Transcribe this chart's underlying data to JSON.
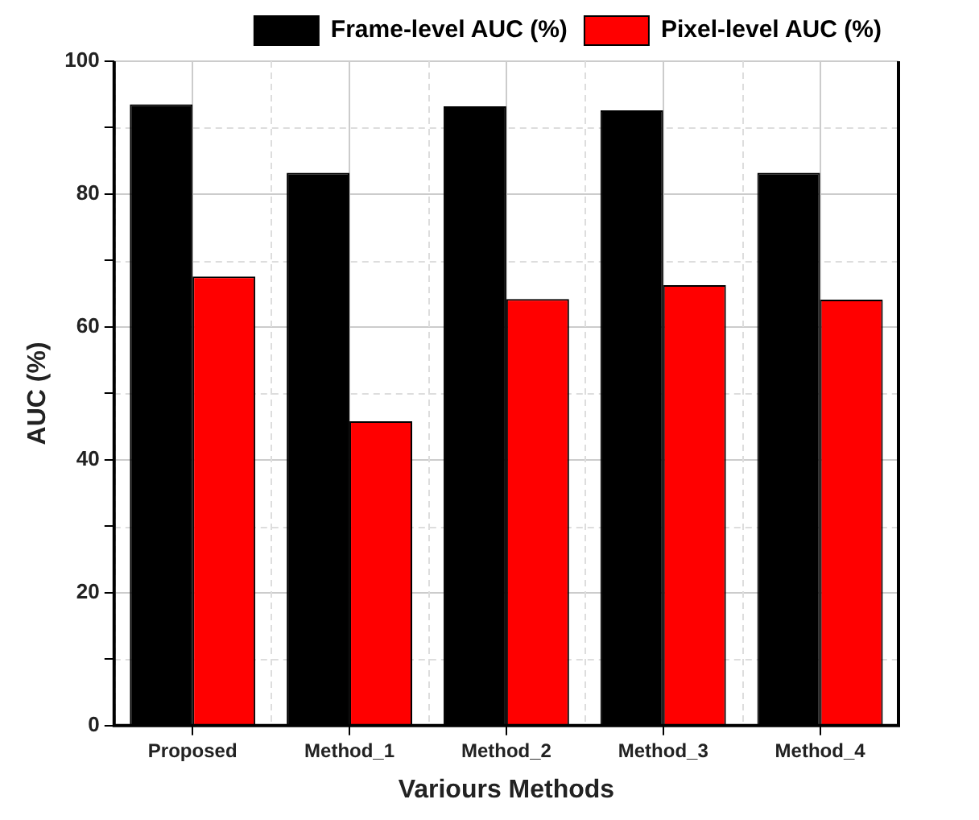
{
  "chart_data": {
    "type": "bar",
    "xlabel": "Variours Methods",
    "ylabel": "AUC (%)",
    "categories": [
      "Proposed",
      "Method_1",
      "Method_2",
      "Method_3",
      "Method_4"
    ],
    "series": [
      {
        "name": "Frame-level AUC (%)",
        "color": "#000000",
        "values": [
          93.5,
          83.2,
          93.2,
          92.6,
          83.2
        ]
      },
      {
        "name": "Pixel-level AUC (%)",
        "color": "#ff0000",
        "values": [
          67.6,
          45.8,
          64.2,
          66.3,
          64.1
        ]
      }
    ],
    "ylim": [
      0,
      100
    ],
    "yticks": [
      0,
      {
        "value": 10,
        "label": null
      },
      20,
      {
        "value": 30,
        "label": null
      },
      40,
      {
        "value": 50,
        "label": null
      },
      60,
      {
        "value": 70,
        "label": null
      },
      80,
      {
        "value": 90,
        "label": null
      },
      100
    ],
    "grid": true,
    "legend": "top right"
  }
}
